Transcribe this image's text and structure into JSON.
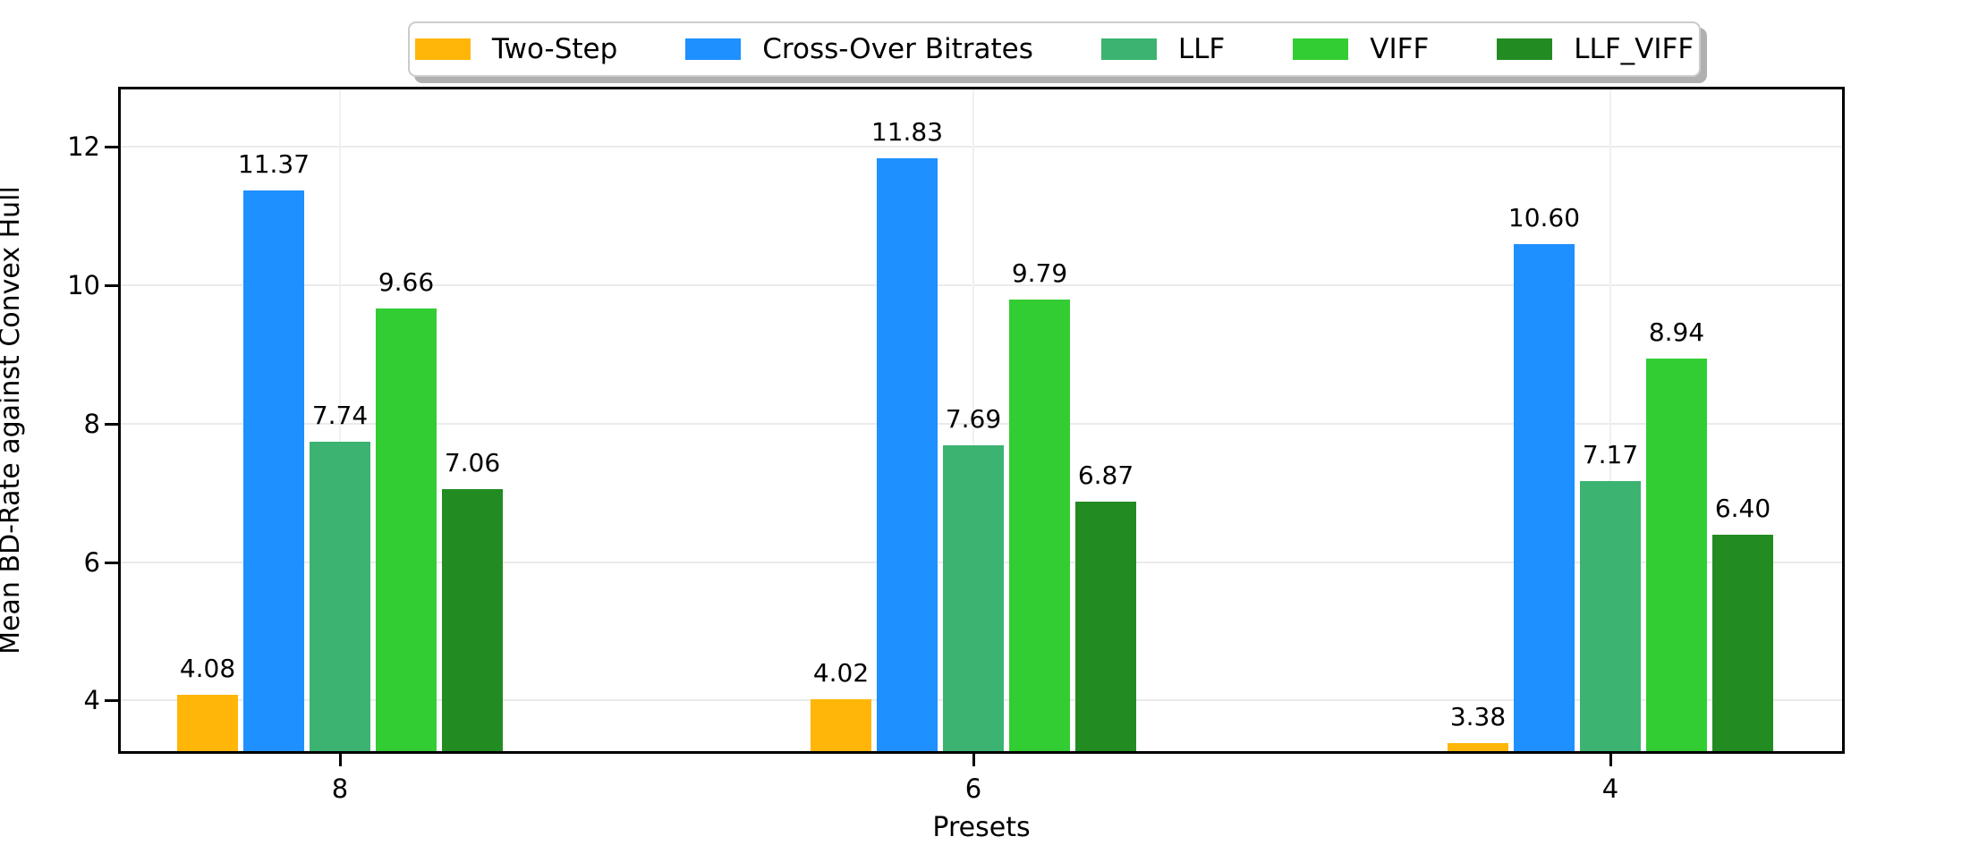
{
  "chart_data": {
    "type": "bar",
    "title": "",
    "xlabel": "Presets",
    "ylabel": "Mean BD-Rate against Convex Hull",
    "categories": [
      "8",
      "6",
      "4"
    ],
    "series": [
      {
        "name": "Two-Step",
        "color": "#FFB608",
        "values": [
          4.08,
          4.02,
          3.38
        ],
        "value_labels": [
          "4.08",
          "4.02",
          "3.38"
        ]
      },
      {
        "name": "Cross-Over Bitrates",
        "color": "#1E90FF",
        "values": [
          11.37,
          11.83,
          10.6
        ],
        "value_labels": [
          "11.37",
          "11.83",
          "10.60"
        ]
      },
      {
        "name": "LLF",
        "color": "#3CB371",
        "values": [
          7.74,
          7.69,
          7.17
        ],
        "value_labels": [
          "7.74",
          "7.69",
          "7.17"
        ]
      },
      {
        "name": "VIFF",
        "color": "#32CD32",
        "values": [
          9.66,
          9.79,
          8.94
        ],
        "value_labels": [
          "9.66",
          "9.79",
          "8.94"
        ]
      },
      {
        "name": "LLF_VIFF",
        "color": "#228B22",
        "values": [
          7.06,
          6.87,
          6.4
        ],
        "value_labels": [
          "7.06",
          "6.87",
          "6.40"
        ]
      }
    ],
    "ytick_labels": [
      "4",
      "6",
      "8",
      "10",
      "12"
    ],
    "yticks": [
      4,
      6,
      8,
      10,
      12
    ],
    "ylim": [
      3.27,
      12.83
    ],
    "grid": true,
    "grid_color": "#ebebeb",
    "legend_position": "top-center",
    "legend_entries": [
      "Two-Step",
      "Cross-Over Bitrates",
      "LLF",
      "VIFF",
      "LLF_VIFF"
    ],
    "axis_color": "#000000",
    "background_color": "#ffffff"
  }
}
